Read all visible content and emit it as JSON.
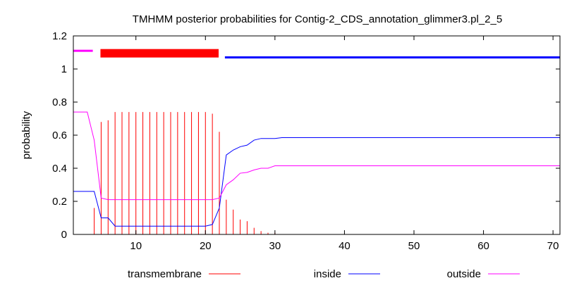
{
  "chart_data": {
    "type": "line",
    "title": "TMHMM posterior probabilities for Contig-2_CDS_annotation_glimmer3.pl_2_5",
    "xlabel": "",
    "ylabel": "probability",
    "xlim": [
      1,
      71
    ],
    "ylim": [
      0,
      1.2
    ],
    "x_ticks": [
      10,
      20,
      30,
      40,
      50,
      60,
      70
    ],
    "y_ticks": [
      0,
      0.2,
      0.4,
      0.6,
      0.8,
      1,
      1.2
    ],
    "y_tick_labels": [
      "0",
      "0.2",
      "0.4",
      "0.6",
      "0.8",
      "1",
      "1.2"
    ],
    "grid": false,
    "legend_position": "bottom",
    "colors": {
      "transmembrane": "#ff0000",
      "inside": "#0000ff",
      "outside": "#ff00ff"
    },
    "topology_bars": [
      {
        "region": "outside",
        "start": 1,
        "end": 3.8,
        "y": 1.11,
        "color": "#ff00ff"
      },
      {
        "region": "transmembrane",
        "start": 4.9,
        "end": 21.9,
        "y": 1.095,
        "color": "#ff0000"
      },
      {
        "region": "inside",
        "start": 22.8,
        "end": 71,
        "y": 1.07,
        "color": "#0000ff"
      }
    ],
    "series": [
      {
        "name": "transmembrane",
        "style": "impulses",
        "x": [
          1,
          2,
          3,
          4,
          5,
          6,
          7,
          8,
          9,
          10,
          11,
          12,
          13,
          14,
          15,
          16,
          17,
          18,
          19,
          20,
          21,
          22,
          23,
          24,
          25,
          26,
          27,
          28,
          29,
          30,
          31,
          32,
          33,
          34,
          35,
          36,
          37,
          38,
          39,
          40,
          41,
          42,
          43,
          44,
          45,
          46,
          47,
          48,
          49,
          50,
          51,
          52,
          53,
          54,
          55,
          56,
          57,
          58,
          59,
          60,
          61,
          62,
          63,
          64,
          65,
          66,
          67,
          68,
          69,
          70,
          71
        ],
        "values": [
          0,
          0,
          0,
          0.16,
          0.68,
          0.69,
          0.74,
          0.74,
          0.74,
          0.74,
          0.74,
          0.74,
          0.74,
          0.74,
          0.74,
          0.74,
          0.74,
          0.74,
          0.74,
          0.74,
          0.73,
          0.62,
          0.21,
          0.15,
          0.09,
          0.08,
          0.04,
          0.02,
          0.01,
          0.01,
          0,
          0,
          0,
          0,
          0,
          0,
          0,
          0,
          0,
          0,
          0,
          0,
          0,
          0,
          0,
          0,
          0,
          0,
          0,
          0,
          0,
          0,
          0,
          0,
          0,
          0,
          0,
          0,
          0,
          0,
          0,
          0,
          0,
          0,
          0,
          0,
          0,
          0,
          0,
          0,
          0
        ]
      },
      {
        "name": "inside",
        "style": "line",
        "x": [
          1,
          2,
          3,
          4,
          5,
          6,
          7,
          8,
          9,
          10,
          11,
          12,
          13,
          14,
          15,
          16,
          17,
          18,
          19,
          20,
          21,
          22,
          23,
          24,
          25,
          26,
          27,
          28,
          29,
          30,
          31,
          32,
          33,
          34,
          35,
          36,
          37,
          38,
          39,
          40,
          41,
          42,
          43,
          44,
          45,
          46,
          47,
          48,
          49,
          50,
          51,
          52,
          53,
          54,
          55,
          56,
          57,
          58,
          59,
          60,
          61,
          62,
          63,
          64,
          65,
          66,
          67,
          68,
          69,
          70,
          71
        ],
        "values": [
          0.26,
          0.26,
          0.26,
          0.26,
          0.1,
          0.1,
          0.05,
          0.05,
          0.05,
          0.05,
          0.05,
          0.05,
          0.05,
          0.05,
          0.05,
          0.05,
          0.05,
          0.05,
          0.05,
          0.05,
          0.06,
          0.16,
          0.48,
          0.51,
          0.53,
          0.54,
          0.57,
          0.58,
          0.58,
          0.58,
          0.585,
          0.585,
          0.585,
          0.585,
          0.585,
          0.585,
          0.585,
          0.585,
          0.585,
          0.585,
          0.585,
          0.585,
          0.585,
          0.585,
          0.585,
          0.585,
          0.585,
          0.585,
          0.585,
          0.585,
          0.585,
          0.585,
          0.585,
          0.585,
          0.585,
          0.585,
          0.585,
          0.585,
          0.585,
          0.585,
          0.585,
          0.585,
          0.585,
          0.585,
          0.585,
          0.585,
          0.585,
          0.585,
          0.585,
          0.585,
          0.585
        ]
      },
      {
        "name": "outside",
        "style": "line",
        "x": [
          1,
          2,
          3,
          4,
          5,
          6,
          7,
          8,
          9,
          10,
          11,
          12,
          13,
          14,
          15,
          16,
          17,
          18,
          19,
          20,
          21,
          22,
          23,
          24,
          25,
          26,
          27,
          28,
          29,
          30,
          31,
          32,
          33,
          34,
          35,
          36,
          37,
          38,
          39,
          40,
          41,
          42,
          43,
          44,
          45,
          46,
          47,
          48,
          49,
          50,
          51,
          52,
          53,
          54,
          55,
          56,
          57,
          58,
          59,
          60,
          61,
          62,
          63,
          64,
          65,
          66,
          67,
          68,
          69,
          70,
          71
        ],
        "values": [
          0.74,
          0.74,
          0.74,
          0.57,
          0.22,
          0.21,
          0.21,
          0.21,
          0.21,
          0.21,
          0.21,
          0.21,
          0.21,
          0.21,
          0.21,
          0.21,
          0.21,
          0.21,
          0.21,
          0.21,
          0.21,
          0.22,
          0.3,
          0.33,
          0.37,
          0.375,
          0.39,
          0.4,
          0.4,
          0.415,
          0.415,
          0.415,
          0.415,
          0.415,
          0.415,
          0.415,
          0.415,
          0.415,
          0.415,
          0.415,
          0.415,
          0.415,
          0.415,
          0.415,
          0.415,
          0.415,
          0.415,
          0.415,
          0.415,
          0.415,
          0.415,
          0.415,
          0.415,
          0.415,
          0.415,
          0.415,
          0.415,
          0.415,
          0.415,
          0.415,
          0.415,
          0.415,
          0.415,
          0.415,
          0.415,
          0.415,
          0.415,
          0.415,
          0.415,
          0.415,
          0.415
        ]
      }
    ]
  }
}
